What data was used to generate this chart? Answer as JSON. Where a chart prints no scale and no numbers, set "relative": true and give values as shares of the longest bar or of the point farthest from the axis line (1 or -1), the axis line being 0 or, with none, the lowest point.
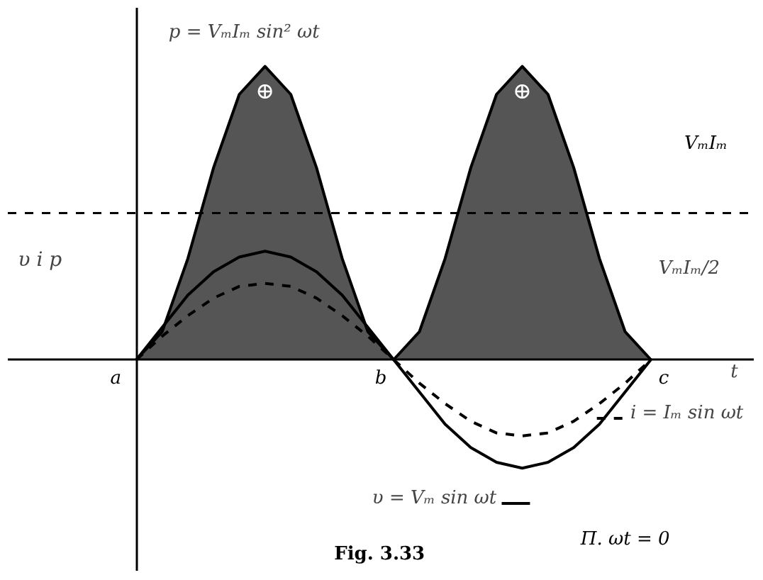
{
  "chart_data": {
    "type": "line",
    "relative": true,
    "xlabel": "t",
    "ylabel": "υ i p",
    "categories": [
      null,
      null,
      null,
      null,
      null,
      null,
      null,
      null,
      null,
      null,
      null,
      null,
      null,
      null,
      null,
      null,
      null,
      null,
      null,
      null,
      null
    ],
    "series": [
      {
        "name": "p = VₘIₘ sin² ωt",
        "type": "area",
        "color": "#555555",
        "values": [
          0,
          0.095,
          0.345,
          0.655,
          0.905,
          1,
          0.905,
          0.655,
          0.345,
          0.095,
          0,
          0.095,
          0.345,
          0.655,
          0.905,
          1,
          0.905,
          0.655,
          0.345,
          0.095,
          0
        ]
      },
      {
        "name": "υ = Vₘ sin ωt",
        "color": "#000000",
        "line_style": "solid",
        "values": [
          0,
          0.11,
          0.22,
          0.3,
          0.35,
          0.37,
          0.35,
          0.3,
          0.22,
          0.11,
          0,
          -0.11,
          -0.22,
          -0.3,
          -0.35,
          -0.37,
          -0.35,
          -0.3,
          -0.22,
          -0.11,
          0
        ]
      },
      {
        "name": "i = Iₘ sin ωt",
        "color": "#000000",
        "line_style": "dashed",
        "values": [
          0,
          0.08,
          0.15,
          0.21,
          0.25,
          0.26,
          0.25,
          0.21,
          0.15,
          0.08,
          0,
          -0.08,
          -0.15,
          -0.21,
          -0.25,
          -0.26,
          -0.25,
          -0.21,
          -0.15,
          -0.08,
          0
        ]
      }
    ],
    "ref_lines": [
      {
        "axis": "y",
        "value": 0.5,
        "label": "VₘIₘ/2",
        "line_style": "dashed",
        "color": "#000000"
      }
    ],
    "annotations": [
      "⊕",
      "⊕",
      "VₘIₘ",
      "a",
      "b",
      "c",
      "Fig. 3.33",
      "Π. ωt = 0"
    ]
  }
}
